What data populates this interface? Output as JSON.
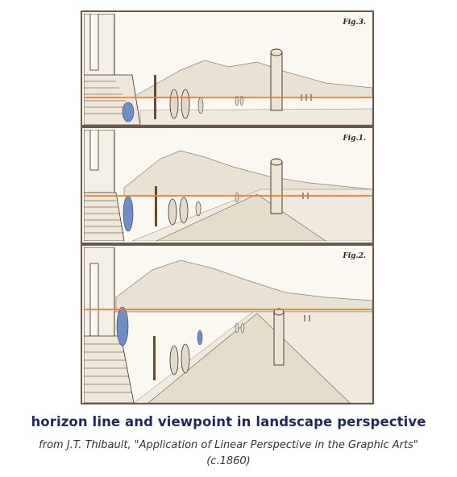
{
  "figure": {
    "panels": [
      {
        "label": "Fig.3."
      },
      {
        "label": "Fig.1."
      },
      {
        "label": "Fig.2."
      }
    ],
    "colors": {
      "horizon_line": "#f07a2c",
      "highlight_blue": "#6f8fc4",
      "ink": "#3a2f28",
      "paper": "#fbf8f1"
    }
  },
  "caption": {
    "title": "horizon line and viewpoint in landscape perspective",
    "subtitle": "from J.T. Thibault, \"Application of Linear Perspective in the Graphic Arts\" (c.1860)"
  }
}
